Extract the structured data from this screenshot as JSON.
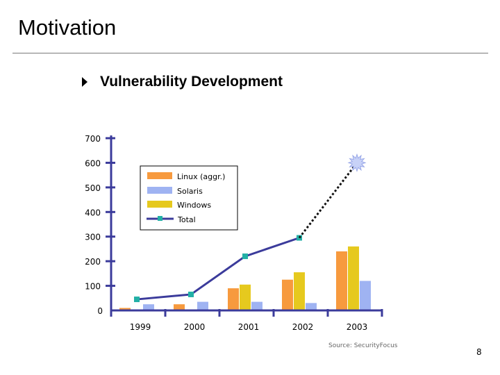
{
  "slide": {
    "title": "Motivation",
    "bullet": "Vulnerability Development",
    "source": "Source: SecurityFocus",
    "page_number": "8"
  },
  "colors": {
    "linux": "#f79a3e",
    "solaris": "#9fb3f2",
    "windows": "#e6c91e",
    "total_line": "#3b3b9b",
    "total_marker": "#22b0a6",
    "axis": "#3b3b9b",
    "projection": "#111111",
    "star": "#c8d2f7"
  },
  "chart_data": {
    "type": "bar",
    "title": "",
    "xlabel": "",
    "ylabel": "",
    "ylim": [
      0,
      700
    ],
    "yticks": [
      "0",
      "100",
      "200",
      "300",
      "400",
      "500",
      "600",
      "700"
    ],
    "categories": [
      "1999",
      "2000",
      "2001",
      "2002",
      "2003"
    ],
    "series": [
      {
        "name": "Linux (aggr.)",
        "values": [
          10,
          25,
          90,
          125,
          240
        ]
      },
      {
        "name": "Windows",
        "values": [
          0,
          0,
          105,
          155,
          260
        ]
      },
      {
        "name": "Solaris",
        "values": [
          25,
          35,
          35,
          30,
          120
        ]
      }
    ],
    "total": {
      "name": "Total",
      "values": [
        45,
        65,
        220,
        295
      ],
      "projected_2003": 600
    },
    "legend": [
      "Linux (aggr.)",
      "Solaris",
      "Windows",
      "Total"
    ],
    "legend_position": "top-center"
  }
}
